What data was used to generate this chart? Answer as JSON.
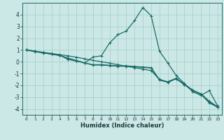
{
  "title": "",
  "xlabel": "Humidex (Indice chaleur)",
  "xlim": [
    -0.5,
    23.5
  ],
  "ylim": [
    -4.5,
    5.0
  ],
  "xticks": [
    0,
    1,
    2,
    3,
    4,
    5,
    6,
    7,
    8,
    9,
    10,
    11,
    12,
    13,
    14,
    15,
    16,
    17,
    18,
    19,
    20,
    21,
    22,
    23
  ],
  "yticks": [
    -4,
    -3,
    -2,
    -1,
    0,
    1,
    2,
    3,
    4
  ],
  "background_color": "#cce8e6",
  "grid_color": "#a0ccc9",
  "line_color": "#1a6b68",
  "line1_x": [
    0,
    1,
    2,
    3,
    4,
    5,
    6,
    7,
    8,
    9,
    10,
    11,
    12,
    13,
    14,
    15,
    16,
    17,
    18,
    19,
    20,
    21,
    22,
    23
  ],
  "line1_y": [
    1.0,
    0.9,
    0.8,
    0.7,
    0.6,
    0.5,
    0.38,
    0.25,
    0.12,
    0.0,
    -0.12,
    -0.25,
    -0.38,
    -0.5,
    -0.62,
    -0.75,
    -1.5,
    -1.7,
    -1.4,
    -1.9,
    -2.4,
    -2.75,
    -3.5,
    -3.85
  ],
  "line2_x": [
    0,
    1,
    2,
    3,
    4,
    5,
    6,
    7,
    8,
    9,
    10,
    11,
    12,
    13,
    14,
    15,
    16,
    17,
    18,
    19,
    20,
    21,
    22,
    23
  ],
  "line2_y": [
    1.0,
    0.85,
    0.75,
    0.65,
    0.55,
    0.2,
    0.05,
    -0.1,
    0.4,
    0.5,
    1.6,
    2.3,
    2.6,
    3.5,
    4.6,
    3.9,
    0.9,
    -0.1,
    -1.15,
    -1.85,
    -2.55,
    -2.85,
    -2.45,
    -3.75
  ],
  "line3_x": [
    0,
    1,
    2,
    3,
    4,
    5,
    6,
    7,
    8,
    9,
    10,
    11,
    12,
    13,
    14,
    15,
    16,
    17,
    18,
    19,
    20,
    21,
    22,
    23
  ],
  "line3_y": [
    1.0,
    0.88,
    0.77,
    0.65,
    0.53,
    0.3,
    0.1,
    -0.1,
    -0.25,
    -0.25,
    -0.3,
    -0.35,
    -0.35,
    -0.4,
    -0.45,
    -0.5,
    -1.52,
    -1.72,
    -1.42,
    -1.92,
    -2.42,
    -2.72,
    -3.35,
    -3.82
  ],
  "line4_x": [
    0,
    1,
    2,
    3,
    4,
    5,
    6,
    7,
    8,
    9,
    10,
    11,
    12,
    13,
    14,
    15,
    16,
    17,
    18,
    19,
    20,
    21,
    22,
    23
  ],
  "line4_y": [
    1.0,
    0.88,
    0.77,
    0.65,
    0.53,
    0.3,
    0.1,
    -0.1,
    -0.28,
    -0.28,
    -0.33,
    -0.38,
    -0.38,
    -0.43,
    -0.48,
    -0.53,
    -1.55,
    -1.75,
    -1.45,
    -1.95,
    -2.45,
    -2.75,
    -3.38,
    -3.85
  ]
}
